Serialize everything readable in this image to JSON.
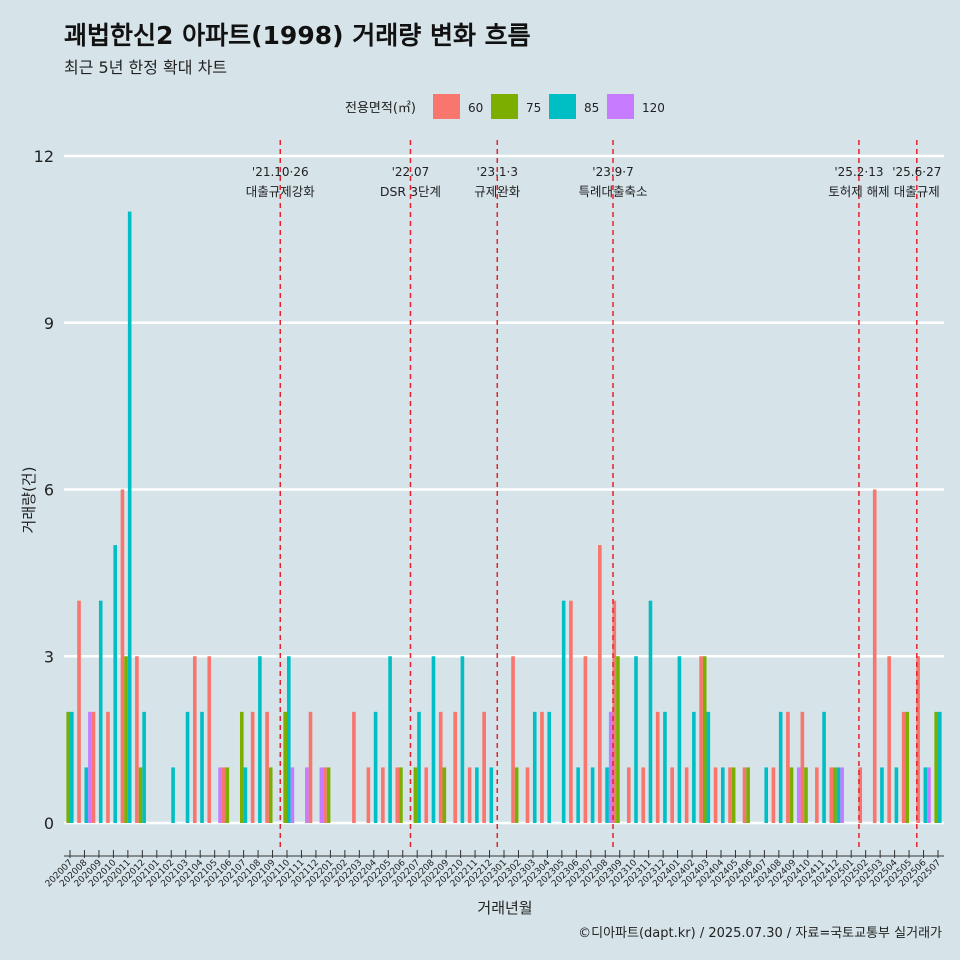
{
  "title": "괘법한신2 아파트(1998) 거래량 변화 흐름",
  "subtitle": "최근 5년 한정 확대 차트",
  "caption": "©디아파트(dapt.kr) / 2025.07.30 / 자료=국토교통부 실거래가",
  "chart_data": {
    "type": "bar",
    "xlabel": "거래년월",
    "ylabel": "거래량(건)",
    "ylim": [
      -0.5,
      12.3
    ],
    "yticks": [
      0,
      3,
      6,
      9,
      12
    ],
    "legend": {
      "title": "전용면적(㎡)",
      "position": "top",
      "entries": [
        {
          "name": "60",
          "color": "#f8766d"
        },
        {
          "name": "75",
          "color": "#7cae00"
        },
        {
          "name": "85",
          "color": "#00bfc4"
        },
        {
          "name": "120",
          "color": "#c77cff"
        }
      ]
    },
    "months": [
      "202007",
      "202008",
      "202009",
      "202010",
      "202011",
      "202012",
      "202101",
      "202102",
      "202103",
      "202104",
      "202105",
      "202106",
      "202107",
      "202108",
      "202109",
      "202110",
      "202111",
      "202112",
      "202201",
      "202202",
      "202203",
      "202204",
      "202205",
      "202206",
      "202207",
      "202208",
      "202209",
      "202210",
      "202211",
      "202212",
      "202301",
      "202302",
      "202303",
      "202304",
      "202305",
      "202306",
      "202307",
      "202308",
      "202309",
      "202310",
      "202311",
      "202312",
      "202401",
      "202402",
      "202403",
      "202404",
      "202405",
      "202406",
      "202407",
      "202408",
      "202409",
      "202410",
      "202411",
      "202412",
      "202501",
      "202502",
      "202503",
      "202504",
      "202505",
      "202506",
      "202507"
    ],
    "tick_labels": [
      "202007",
      "202008",
      "202009",
      "202010",
      "202011",
      "202012",
      "202101",
      "202102",
      "202103",
      "202104",
      "202105",
      "202106",
      "202107",
      "202108",
      "202109",
      "202110",
      "202111",
      "202112",
      "202201",
      "202202",
      "202203",
      "202204",
      "202205",
      "202206",
      "202207",
      "202208",
      "202209",
      "202210",
      "202211",
      "202212",
      "202301",
      "202302",
      "202303",
      "202304",
      "202305",
      "202306",
      "202307",
      "202308",
      "202309",
      "202310",
      "202311",
      "202312",
      "202401",
      "202402",
      "202403",
      "202404",
      "202405",
      "202406",
      "202407",
      "202408",
      "202409",
      "202410",
      "202411",
      "202412",
      "202501",
      "202502",
      "202503",
      "202504",
      "202505",
      "202506",
      "202507"
    ],
    "bars": [
      {
        "month": "202007",
        "values": [
          0,
          2,
          2,
          0
        ]
      },
      {
        "month": "202008",
        "values": [
          4,
          0,
          1,
          2
        ]
      },
      {
        "month": "202009",
        "values": [
          2,
          0,
          4,
          0
        ]
      },
      {
        "month": "202010",
        "values": [
          2,
          0,
          5,
          0
        ]
      },
      {
        "month": "202011",
        "values": [
          6,
          3,
          11,
          0
        ]
      },
      {
        "month": "202012",
        "values": [
          3,
          1,
          2,
          0
        ]
      },
      {
        "month": "202101",
        "values": [
          0,
          0,
          0,
          0
        ]
      },
      {
        "month": "202102",
        "values": [
          0,
          0,
          1,
          0
        ]
      },
      {
        "month": "202103",
        "values": [
          0,
          0,
          2,
          0
        ]
      },
      {
        "month": "202104",
        "values": [
          3,
          0,
          2,
          0
        ]
      },
      {
        "month": "202105",
        "values": [
          3,
          0,
          0,
          1
        ]
      },
      {
        "month": "202106",
        "values": [
          1,
          1,
          0,
          0
        ]
      },
      {
        "month": "202107",
        "values": [
          0,
          2,
          1,
          0
        ]
      },
      {
        "month": "202108",
        "values": [
          2,
          0,
          3,
          0
        ]
      },
      {
        "month": "202109",
        "values": [
          2,
          1,
          0,
          0
        ]
      },
      {
        "month": "202110",
        "values": [
          0,
          2,
          3,
          1
        ]
      },
      {
        "month": "202111",
        "values": [
          0,
          0,
          0,
          1
        ]
      },
      {
        "month": "202112",
        "values": [
          2,
          0,
          0,
          1
        ]
      },
      {
        "month": "202201",
        "values": [
          1,
          1,
          0,
          0
        ]
      },
      {
        "month": "202202",
        "values": [
          0,
          0,
          0,
          0
        ]
      },
      {
        "month": "202203",
        "values": [
          2,
          0,
          0,
          0
        ]
      },
      {
        "month": "202204",
        "values": [
          1,
          0,
          2,
          0
        ]
      },
      {
        "month": "202205",
        "values": [
          1,
          0,
          3,
          0
        ]
      },
      {
        "month": "202206",
        "values": [
          1,
          1,
          0,
          0
        ]
      },
      {
        "month": "202207",
        "values": [
          0,
          1,
          2,
          0
        ]
      },
      {
        "month": "202208",
        "values": [
          1,
          0,
          3,
          0
        ]
      },
      {
        "month": "202209",
        "values": [
          2,
          1,
          0,
          0
        ]
      },
      {
        "month": "202210",
        "values": [
          2,
          0,
          3,
          0
        ]
      },
      {
        "month": "202211",
        "values": [
          1,
          0,
          1,
          0
        ]
      },
      {
        "month": "202212",
        "values": [
          2,
          0,
          1,
          0
        ]
      },
      {
        "month": "202301",
        "values": [
          0,
          0,
          0,
          0
        ]
      },
      {
        "month": "202302",
        "values": [
          3,
          1,
          0,
          0
        ]
      },
      {
        "month": "202303",
        "values": [
          1,
          0,
          2,
          0
        ]
      },
      {
        "month": "202304",
        "values": [
          2,
          0,
          2,
          0
        ]
      },
      {
        "month": "202305",
        "values": [
          0,
          0,
          4,
          0
        ]
      },
      {
        "month": "202306",
        "values": [
          4,
          0,
          1,
          0
        ]
      },
      {
        "month": "202307",
        "values": [
          3,
          0,
          1,
          0
        ]
      },
      {
        "month": "202308",
        "values": [
          5,
          0,
          1,
          2
        ]
      },
      {
        "month": "202309",
        "values": [
          4,
          3,
          0,
          0
        ]
      },
      {
        "month": "202310",
        "values": [
          1,
          0,
          3,
          0
        ]
      },
      {
        "month": "202311",
        "values": [
          1,
          0,
          4,
          0
        ]
      },
      {
        "month": "202312",
        "values": [
          2,
          0,
          2,
          0
        ]
      },
      {
        "month": "202401",
        "values": [
          1,
          0,
          3,
          0
        ]
      },
      {
        "month": "202402",
        "values": [
          1,
          0,
          2,
          0
        ]
      },
      {
        "month": "202403",
        "values": [
          3,
          3,
          2,
          0
        ]
      },
      {
        "month": "202404",
        "values": [
          1,
          0,
          1,
          0
        ]
      },
      {
        "month": "202405",
        "values": [
          1,
          1,
          0,
          0
        ]
      },
      {
        "month": "202406",
        "values": [
          1,
          1,
          0,
          0
        ]
      },
      {
        "month": "202407",
        "values": [
          0,
          0,
          1,
          0
        ]
      },
      {
        "month": "202408",
        "values": [
          1,
          0,
          2,
          0
        ]
      },
      {
        "month": "202409",
        "values": [
          2,
          1,
          0,
          1
        ]
      },
      {
        "month": "202410",
        "values": [
          2,
          1,
          0,
          0
        ]
      },
      {
        "month": "202411",
        "values": [
          1,
          0,
          2,
          0
        ]
      },
      {
        "month": "202412",
        "values": [
          1,
          1,
          1,
          1
        ]
      },
      {
        "month": "202501",
        "values": [
          0,
          0,
          0,
          0
        ]
      },
      {
        "month": "202502",
        "values": [
          1,
          0,
          0,
          0
        ]
      },
      {
        "month": "202503",
        "values": [
          6,
          0,
          1,
          0
        ]
      },
      {
        "month": "202504",
        "values": [
          3,
          0,
          1,
          0
        ]
      },
      {
        "month": "202505",
        "values": [
          2,
          2,
          0,
          0
        ]
      },
      {
        "month": "202506",
        "values": [
          3,
          0,
          1,
          1
        ]
      },
      {
        "month": "202507",
        "values": [
          0,
          2,
          2,
          0
        ]
      }
    ],
    "annotations": [
      {
        "month": "202110",
        "date": "'21.10·26",
        "label": "대출규제강화"
      },
      {
        "month": "202207",
        "date": "'22.07",
        "label": "DSR 3단계"
      },
      {
        "month": "202301",
        "date": "'23.1·3",
        "label": "규제완화"
      },
      {
        "month": "202309",
        "date": "'23.9·7",
        "label": "특례대출축소"
      },
      {
        "month": "202502",
        "date": "'25.2·13",
        "label": "토허제 해제"
      },
      {
        "month": "202506",
        "date": "'25.6·27",
        "label": "대출규제"
      }
    ]
  }
}
